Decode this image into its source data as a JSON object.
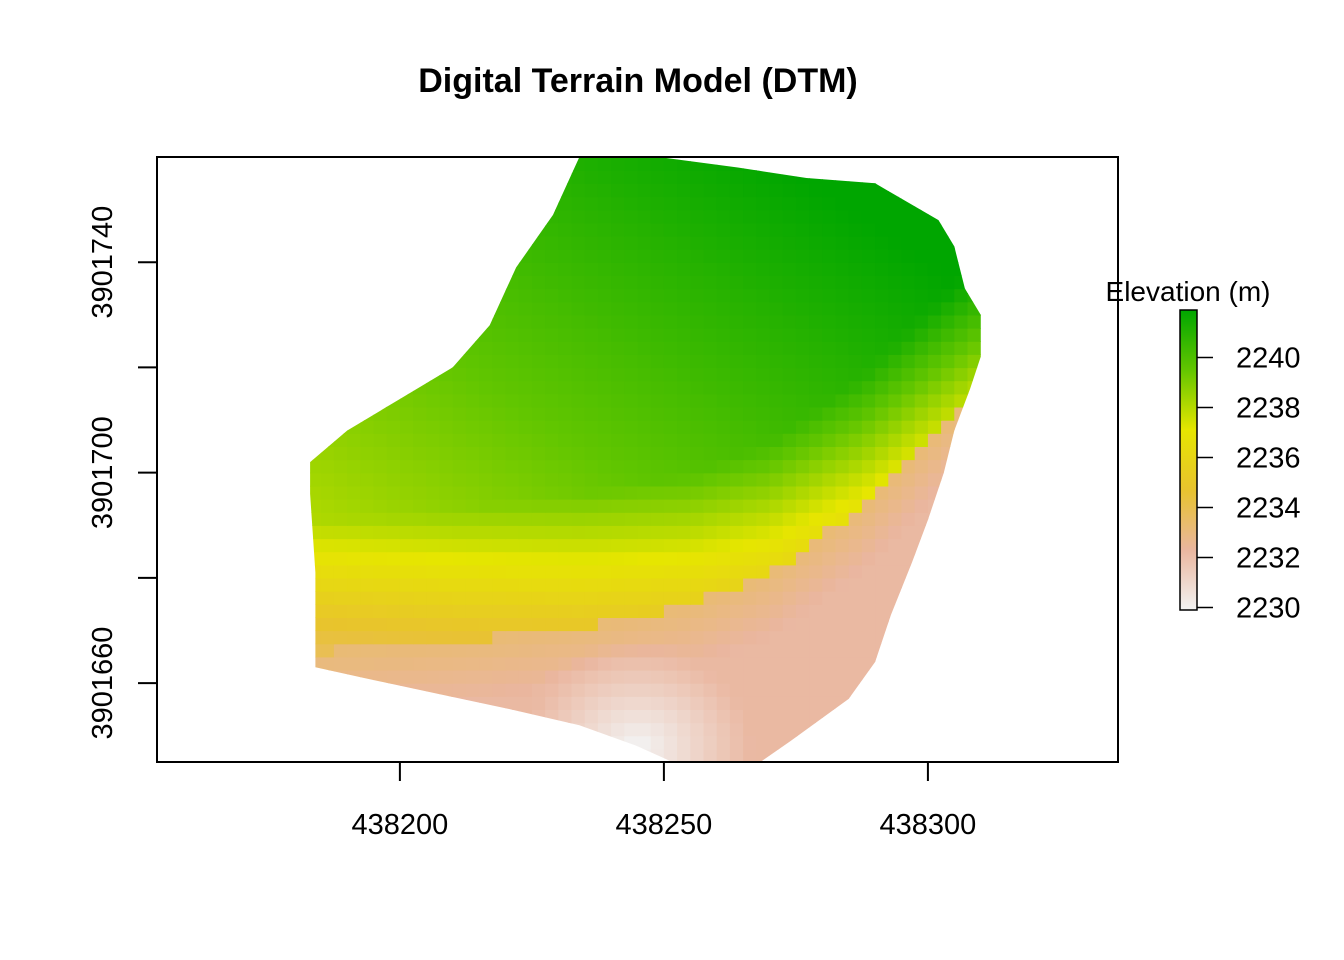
{
  "chart_data": {
    "type": "heatmap",
    "title": "Digital Terrain Model (DTM)",
    "xlabel": "",
    "ylabel": "",
    "x_ticks": [
      438200,
      438250,
      438300
    ],
    "y_ticks": [
      3901660,
      3901680,
      3901700,
      3901720,
      3901740
    ],
    "y_tick_labels": [
      {
        "value": 3901660,
        "label": "3901660"
      },
      {
        "value": 3901700,
        "label": "3901700"
      },
      {
        "value": 3901740,
        "label": "3901740"
      }
    ],
    "xlim": [
      438154,
      438336
    ],
    "ylim": [
      3901645,
      3901760
    ],
    "legend": {
      "title": "Elevation (m)",
      "placement": "right",
      "min": 2229.9,
      "max": 2241.9,
      "ticks": [
        2230,
        2232,
        2234,
        2236,
        2238,
        2240
      ],
      "colors": [
        "#f2f2f2",
        "#eab69f",
        "#e8c32e",
        "#e6e600",
        "#63c600",
        "#00a600"
      ]
    },
    "raster_extent": {
      "outline_vertices": [
        [
          438234,
          3901760
        ],
        [
          438249,
          3901760
        ],
        [
          438264,
          3901758
        ],
        [
          438277,
          3901756
        ],
        [
          438290,
          3901755
        ],
        [
          438302,
          3901748
        ],
        [
          438305,
          3901743
        ],
        [
          438307,
          3901735
        ],
        [
          438310,
          3901730
        ],
        [
          438310,
          3901722
        ],
        [
          438308,
          3901716
        ],
        [
          438305,
          3901708
        ],
        [
          438303,
          3901700
        ],
        [
          438300,
          3901691
        ],
        [
          438297,
          3901683
        ],
        [
          438293,
          3901673
        ],
        [
          438290,
          3901664
        ],
        [
          438285,
          3901657
        ],
        [
          438274,
          3901649
        ],
        [
          438264,
          3901642
        ],
        [
          438256,
          3901643
        ],
        [
          438245,
          3901648
        ],
        [
          438234,
          3901652
        ],
        [
          438221,
          3901655
        ],
        [
          438207,
          3901658
        ],
        [
          438193,
          3901661
        ],
        [
          438184,
          3901663
        ],
        [
          438184,
          3901681
        ],
        [
          438183,
          3901696
        ],
        [
          438183,
          3901702
        ],
        [
          438190,
          3901708
        ],
        [
          438200,
          3901714
        ],
        [
          438210,
          3901720
        ],
        [
          438217,
          3901728
        ],
        [
          438222,
          3901739
        ],
        [
          438229,
          3901749
        ]
      ],
      "elevation_surface": {
        "description_units": "m",
        "ridge_line": [
          [
            438183,
            3901666
          ],
          [
            438210,
            3901668
          ],
          [
            438235,
            3901671
          ],
          [
            438255,
            3901675
          ],
          [
            438270,
            3901681
          ],
          [
            438288,
            3901694
          ],
          [
            438302,
            3901708
          ],
          [
            438310,
            3901716
          ]
        ],
        "green_base": 2239.5,
        "lowest_point": [
          438245,
          3901648,
          2229.9
        ]
      }
    }
  }
}
